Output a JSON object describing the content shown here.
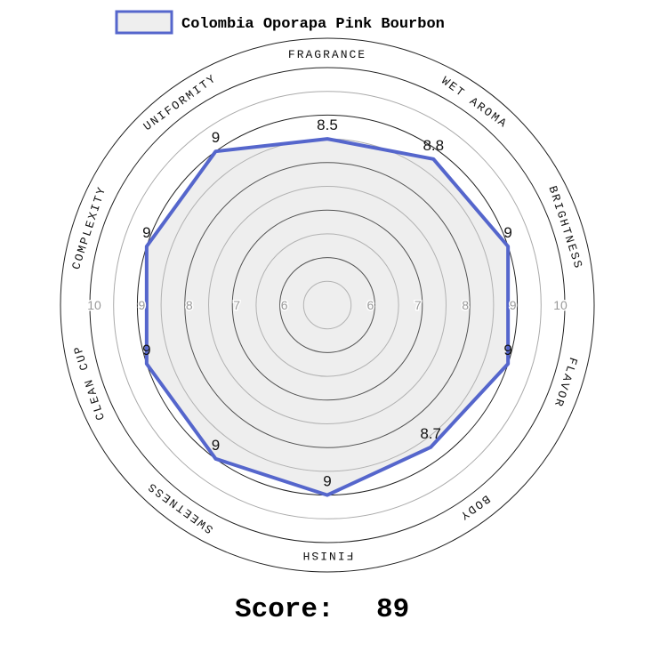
{
  "chart_data": {
    "type": "radar",
    "categories": [
      "FRAGRANCE",
      "WET AROMA",
      "BRIGHTNESS",
      "FLAVOR",
      "BODY",
      "FINISH",
      "SWEETNESS",
      "CLEAN CUP",
      "COMPLEXITY",
      "UNIFORMITY"
    ],
    "series": [
      {
        "name": "Colombia Oporapa Pink Bourbon",
        "color": "#5566cc",
        "values": [
          8.5,
          8.8,
          9,
          9,
          8.7,
          9,
          9,
          9,
          9,
          9
        ]
      }
    ],
    "ylim": [
      5,
      10
    ],
    "yticks": [
      6,
      7,
      8,
      9,
      10
    ],
    "grid": true,
    "score_label": "Score:",
    "score": 89
  }
}
